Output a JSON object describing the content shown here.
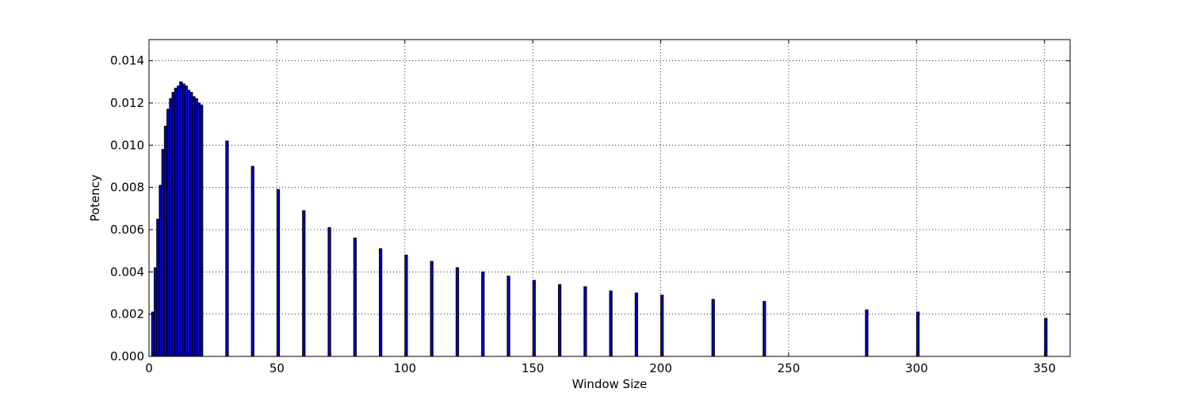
{
  "chart_data": {
    "type": "bar",
    "title": "",
    "xlabel": "Window Size",
    "ylabel": "Potency",
    "xlim": [
      0,
      360
    ],
    "ylim": [
      0,
      0.015
    ],
    "xticks": [
      0,
      50,
      100,
      150,
      200,
      250,
      300,
      350
    ],
    "yticks": [
      0.0,
      0.002,
      0.004,
      0.006,
      0.008,
      0.01,
      0.012,
      0.014
    ],
    "xtick_labels": [
      "0",
      "50",
      "100",
      "150",
      "200",
      "250",
      "300",
      "350"
    ],
    "ytick_labels": [
      "0.000",
      "0.002",
      "0.004",
      "0.006",
      "0.008",
      "0.010",
      "0.012",
      "0.014"
    ],
    "grid": true,
    "bar_width": 1,
    "bar_color": "#0000cc",
    "x": [
      1,
      2,
      3,
      4,
      5,
      6,
      7,
      8,
      9,
      10,
      11,
      12,
      13,
      14,
      15,
      16,
      17,
      18,
      19,
      20,
      30,
      40,
      50,
      60,
      70,
      80,
      90,
      100,
      110,
      120,
      130,
      140,
      150,
      160,
      170,
      180,
      190,
      200,
      220,
      240,
      280,
      300,
      350
    ],
    "values": [
      0.0021,
      0.0042,
      0.0065,
      0.0081,
      0.0098,
      0.0109,
      0.0117,
      0.0122,
      0.0125,
      0.0127,
      0.0128,
      0.013,
      0.0129,
      0.0128,
      0.0126,
      0.0125,
      0.0123,
      0.0122,
      0.012,
      0.0119,
      0.0102,
      0.009,
      0.0079,
      0.0069,
      0.0061,
      0.0056,
      0.0051,
      0.0048,
      0.0045,
      0.0042,
      0.004,
      0.0038,
      0.0036,
      0.0034,
      0.0033,
      0.0031,
      0.003,
      0.0029,
      0.0027,
      0.0026,
      0.0022,
      0.0021,
      0.0018
    ]
  }
}
